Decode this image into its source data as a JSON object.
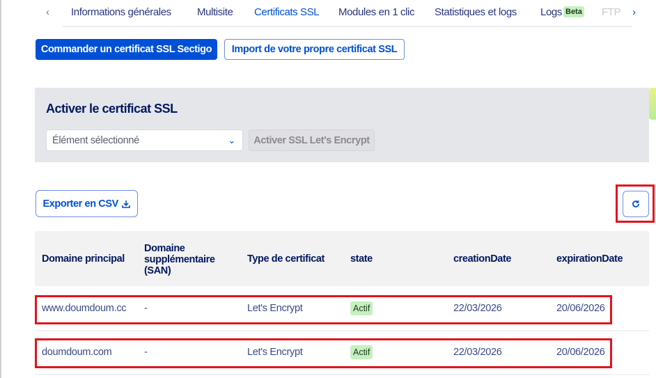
{
  "tabs": {
    "prev": "‹",
    "next": "›",
    "items": [
      {
        "label": "Informations générales"
      },
      {
        "label": "Multisite"
      },
      {
        "label": "Certificats SSL",
        "active": true
      },
      {
        "label": "Modules en 1 clic"
      },
      {
        "label": "Statistiques et logs"
      },
      {
        "label": "Logs",
        "badge": "Beta"
      },
      {
        "label": "FTP"
      }
    ]
  },
  "actions": {
    "order": "Commander un certificat SSL Sectigo",
    "import": "Import de votre propre certificat SSL"
  },
  "activate": {
    "title": "Activer le certificat SSL",
    "select_value": "Élément sélectionné",
    "button": "Activer SSL Let's Encrypt"
  },
  "toolbar": {
    "export": "Exporter en CSV",
    "export_icon": "download-icon",
    "refresh_icon": "refresh-icon"
  },
  "table": {
    "headers": [
      "Domaine principal",
      "Domaine supplémentaire (SAN)",
      "Type de certificat",
      "state",
      "creationDate",
      "expirationDate"
    ],
    "rows": [
      [
        "www.doumdoum.cc",
        "-",
        "Let's Encrypt",
        "Actif",
        "22/03/2026",
        "20/06/2026"
      ],
      [
        "doumdoum.com",
        "-",
        "Let's Encrypt",
        "Actif",
        "22/03/2026",
        "20/06/2026"
      ]
    ]
  },
  "colors": {
    "accent": "#0050d7",
    "highlight": "#e0141e",
    "badge": "#c7f0c0"
  }
}
